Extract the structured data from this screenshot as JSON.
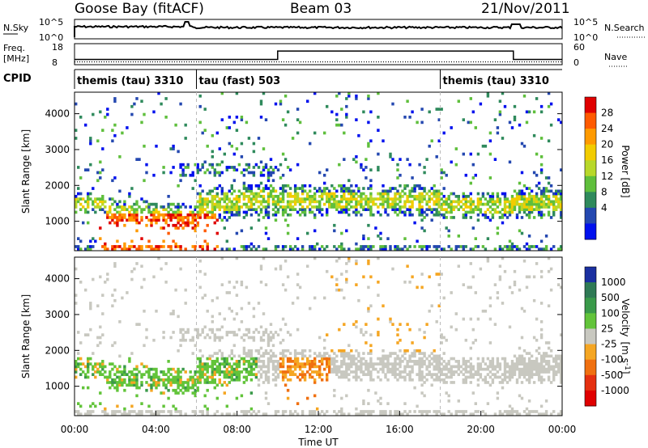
{
  "header": {
    "station": "Goose Bay (fitACF)",
    "beam": "Beam 03",
    "date": "21/Nov/2011"
  },
  "strip_panel": {
    "left_label": "N.Sky",
    "right_label": "N.Search",
    "left_ticks": [
      "10^5",
      "10^0"
    ],
    "right_ticks": [
      "10^5",
      "10^0"
    ]
  },
  "freq_panel": {
    "left_label_1": "Freq.",
    "left_label_2": "[MHz]",
    "right_label": "Nave",
    "left_ticks": [
      "18",
      "8"
    ],
    "right_ticks": [
      "60",
      "0"
    ]
  },
  "cpid": {
    "label": "CPID",
    "segments": [
      {
        "name": "themis (tau) 3310",
        "start": 0,
        "end": 6
      },
      {
        "name": "tau (fast) 503",
        "start": 6,
        "end": 18
      },
      {
        "name": "themis (tau) 3310",
        "start": 18,
        "end": 24
      }
    ]
  },
  "power_colorbar": {
    "label": "Power [dB]",
    "ticks": [
      "28",
      "24",
      "20",
      "16",
      "12",
      "8",
      "4"
    ],
    "colors": [
      "#e00000",
      "#ff5a00",
      "#ff9a00",
      "#f2cc00",
      "#b8d82a",
      "#5fbf3c",
      "#2f8a5c",
      "#2448b0",
      "#0010ee"
    ]
  },
  "velocity_colorbar": {
    "label": "Velocity",
    "unit": "[m s",
    "unit_sup": "-1",
    "unit_end": "]",
    "ticks": [
      "1000",
      "500",
      "100",
      "25",
      "-25",
      "-100",
      "-500",
      "-1000"
    ],
    "colors": [
      "#1a2fa0",
      "#2f7a55",
      "#3a9a4a",
      "#62c43a",
      "#c8c8c0",
      "#f5a623",
      "#f07010",
      "#e53010",
      "#e00000"
    ]
  },
  "chart_data": [
    {
      "type": "line",
      "title": "N.Sky / N.Search",
      "x_range": [
        0,
        24
      ],
      "y_scale": "log",
      "ylim": [
        1,
        100000
      ],
      "note": "noise level time series"
    },
    {
      "type": "line",
      "title": "Freq. [MHz] / Nave",
      "x": [
        0,
        10,
        10,
        21.6,
        21.6,
        24
      ],
      "freq_mhz": [
        10.5,
        10.5,
        14.5,
        14.5,
        10.5,
        10.5
      ],
      "nave_level": 8
    },
    {
      "type": "heatmap",
      "title": "Power",
      "ylabel": "Slant Range [km]",
      "x_range": [
        0,
        24
      ],
      "ylim": [
        180,
        4600
      ],
      "yticks": [
        1000,
        2000,
        3000,
        4000
      ],
      "value_unit": "dB"
    },
    {
      "type": "heatmap",
      "title": "Velocity",
      "ylabel": "Slant Range [km]",
      "xlabel": "Time UT",
      "x_range": [
        0,
        24
      ],
      "ylim": [
        180,
        4600
      ],
      "yticks": [
        1000,
        2000,
        3000,
        4000
      ],
      "xticks": [
        "00:00",
        "04:00",
        "08:00",
        "12:00",
        "16:00",
        "20:00",
        "00:00"
      ],
      "value_unit": "m s-1"
    }
  ]
}
